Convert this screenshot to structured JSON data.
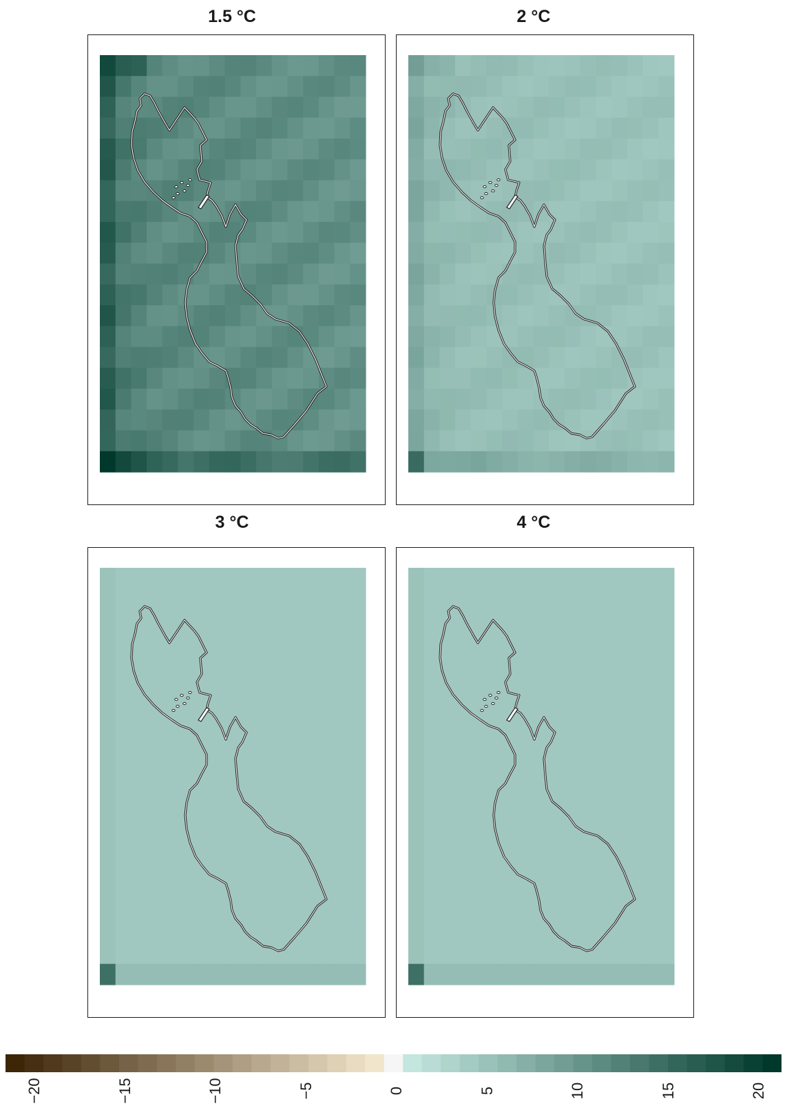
{
  "panels": [
    {
      "id": "p15",
      "title": "1.5 °C",
      "shade": 11.5,
      "grad": 1.0
    },
    {
      "id": "p20",
      "title": "2 °C",
      "shade": 5.5,
      "grad": 0.5
    },
    {
      "id": "p30",
      "title": "3 °C",
      "shade": 4.3,
      "grad": 0.05
    },
    {
      "id": "p40",
      "title": "4 °C",
      "shade": 4.3,
      "grad": 0.1
    }
  ],
  "legend": {
    "min": -20,
    "max": 20,
    "ticks": [
      "−20",
      "−15",
      "−10",
      "−5",
      "0",
      "5",
      "10",
      "15",
      "20"
    ],
    "colors": {
      "negative_dark": "#3d2508",
      "negative_light": "#f6ead0",
      "zero": "#f6f6f6",
      "positive_light": "#c8ebe4",
      "positive_dark": "#00382c"
    }
  }
}
